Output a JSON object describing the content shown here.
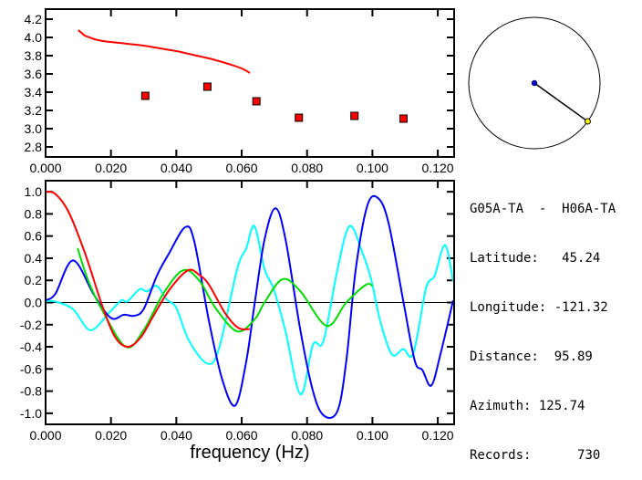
{
  "chart_data": [
    {
      "type": "scatter",
      "title": "",
      "xlabel": "",
      "ylabel": "",
      "xlim": [
        0.0,
        0.125
      ],
      "ylim": [
        2.69,
        4.31
      ],
      "xticks": [
        "0.000",
        "0.020",
        "0.040",
        "0.060",
        "0.080",
        "0.100",
        "0.120"
      ],
      "xtick_values": [
        0,
        0.02,
        0.04,
        0.06,
        0.08,
        0.1,
        0.12
      ],
      "yticks": [
        "2.8",
        "3.0",
        "3.2",
        "3.4",
        "3.6",
        "3.8",
        "4.0",
        "4.2"
      ],
      "ytick_values": [
        2.8,
        3.0,
        3.2,
        3.4,
        3.6,
        3.8,
        4.0,
        4.2
      ],
      "series": [
        {
          "name": "curve",
          "kind": "line",
          "color": "#ff0000",
          "x": [
            0.01,
            0.011,
            0.012,
            0.0135,
            0.015,
            0.0175,
            0.02,
            0.025,
            0.03,
            0.035,
            0.04,
            0.045,
            0.05,
            0.055,
            0.06,
            0.0625
          ],
          "y": [
            4.08,
            4.05,
            4.02,
            4.0,
            3.98,
            3.96,
            3.95,
            3.93,
            3.91,
            3.88,
            3.85,
            3.81,
            3.77,
            3.72,
            3.66,
            3.61
          ]
        },
        {
          "name": "measurements",
          "kind": "points",
          "color": "#ff0000",
          "x": [
            0.0305,
            0.0495,
            0.0645,
            0.0775,
            0.0945,
            0.1095
          ],
          "y": [
            3.36,
            3.46,
            3.3,
            3.12,
            3.14,
            3.11
          ]
        }
      ]
    },
    {
      "type": "line",
      "title": "",
      "xlabel": "frequency (Hz)",
      "ylabel": "",
      "xlim": [
        0.0,
        0.125
      ],
      "ylim": [
        -1.1,
        1.1
      ],
      "xticks": [
        "0.000",
        "0.020",
        "0.040",
        "0.060",
        "0.080",
        "0.100",
        "0.120"
      ],
      "xtick_values": [
        0,
        0.02,
        0.04,
        0.06,
        0.08,
        0.1,
        0.12
      ],
      "yticks": [
        "1.0",
        "0.8",
        "0.6",
        "0.4",
        "0.2",
        "0.0",
        "-0.2",
        "-0.4",
        "-0.6",
        "-0.8",
        "-1.0"
      ],
      "ytick_values": [
        1.0,
        0.8,
        0.6,
        0.4,
        0.2,
        0.0,
        -0.2,
        -0.4,
        -0.6,
        -0.8,
        -1.0
      ],
      "series": [
        {
          "name": "cyan",
          "color": "#00ffff",
          "x": [
            0,
            0.0028,
            0.0084,
            0.0137,
            0.0195,
            0.0232,
            0.025,
            0.0288,
            0.031,
            0.034,
            0.037,
            0.04,
            0.0438,
            0.0494,
            0.053,
            0.0586,
            0.0614,
            0.0639,
            0.067,
            0.0698,
            0.0734,
            0.078,
            0.0818,
            0.085,
            0.0893,
            0.093,
            0.0968,
            0.0996,
            0.1024,
            0.106,
            0.1094,
            0.1125,
            0.1164,
            0.119,
            0.1222,
            0.1247
          ],
          "y": [
            0.01,
            0.01,
            -0.06,
            -0.25,
            -0.09,
            0.02,
            0.01,
            0.12,
            0.1,
            0.15,
            0.03,
            -0.05,
            -0.34,
            -0.55,
            -0.42,
            0.3,
            0.49,
            0.69,
            0.3,
            0.12,
            -0.26,
            -0.83,
            -0.38,
            -0.35,
            0.3,
            0.69,
            0.46,
            0.21,
            -0.17,
            -0.47,
            -0.42,
            -0.46,
            0.13,
            0.24,
            0.52,
            0.19
          ]
        },
        {
          "name": "blue",
          "color": "#0000ff",
          "x": [
            0,
            0.003,
            0.0084,
            0.0148,
            0.02,
            0.024,
            0.027,
            0.03,
            0.034,
            0.0377,
            0.0427,
            0.0455,
            0.05,
            0.054,
            0.058,
            0.0614,
            0.064,
            0.067,
            0.0703,
            0.0734,
            0.078,
            0.0818,
            0.0851,
            0.0893,
            0.092,
            0.0949,
            0.0985,
            0.1018,
            0.105,
            0.1097,
            0.113,
            0.1153,
            0.118,
            0.1208,
            0.1247
          ],
          "y": [
            0.02,
            0.08,
            0.38,
            0.07,
            -0.14,
            -0.11,
            -0.12,
            -0.06,
            0.24,
            0.44,
            0.68,
            0.55,
            -0.17,
            -0.69,
            -0.93,
            -0.53,
            0.0,
            0.57,
            0.85,
            0.57,
            -0.26,
            -0.8,
            -1.02,
            -0.98,
            -0.53,
            0.3,
            0.88,
            0.94,
            0.71,
            -0.03,
            -0.53,
            -0.61,
            -0.75,
            -0.47,
            0.02
          ]
        },
        {
          "name": "green",
          "color": "#00dd00",
          "x": [
            0.0098,
            0.013,
            0.017,
            0.0245,
            0.03,
            0.036,
            0.042,
            0.047,
            0.052,
            0.0586,
            0.064,
            0.067,
            0.0725,
            0.078,
            0.086,
            0.092,
            0.098,
            0.1
          ],
          "y": [
            0.49,
            0.2,
            -0.05,
            -0.4,
            -0.25,
            0.08,
            0.29,
            0.2,
            -0.05,
            -0.26,
            -0.15,
            0.0,
            0.21,
            0.1,
            -0.21,
            0.0,
            0.16,
            0.15
          ]
        },
        {
          "name": "red",
          "color": "#ff0000",
          "x": [
            0,
            0.003,
            0.007,
            0.012,
            0.017,
            0.021,
            0.025,
            0.029,
            0.033,
            0.038,
            0.0435,
            0.047,
            0.05,
            0.055,
            0.059,
            0.0625
          ],
          "y": [
            1.0,
            0.98,
            0.82,
            0.45,
            0.0,
            -0.3,
            -0.4,
            -0.32,
            -0.12,
            0.12,
            0.29,
            0.25,
            0.16,
            -0.1,
            -0.23,
            -0.24
          ]
        }
      ]
    }
  ],
  "map": {
    "azimuth": 125.74
  },
  "info": {
    "pair": "G05A-TA  -  H06A-TA",
    "latitude_label": "Latitude:",
    "latitude": "45.24",
    "longitude_label": "Longitude:",
    "longitude": "-121.32",
    "distance_label": "Distance:",
    "distance": "95.89",
    "azimuth_label": "Azimuth:",
    "azimuth": "125.74",
    "records_label": "Records:",
    "records": "730"
  }
}
